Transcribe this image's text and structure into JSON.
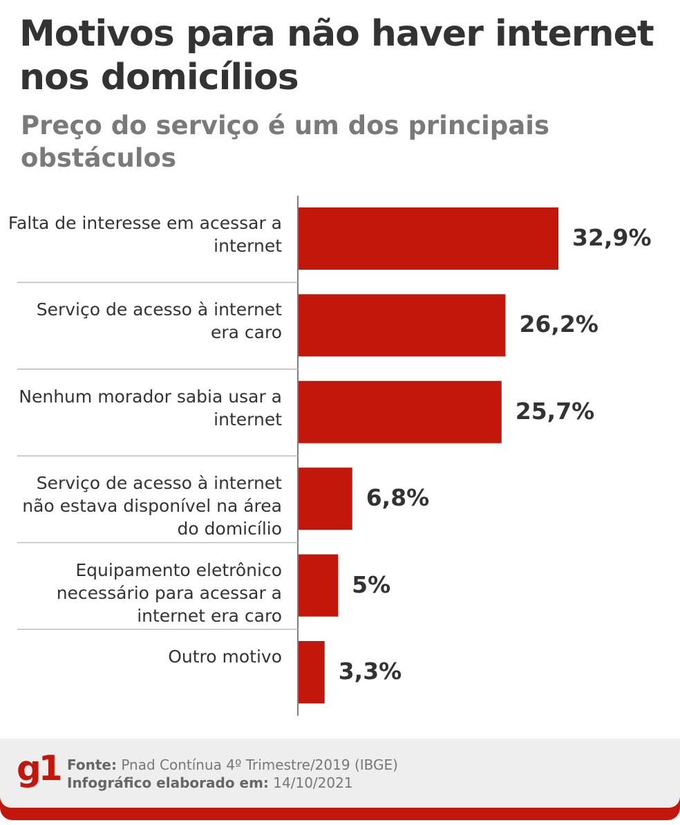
{
  "title": "Motivos para não haver internet nos domicílios",
  "subtitle": "Preço do serviço é um dos principais obstáculos",
  "chart_data": {
    "type": "bar",
    "orientation": "horizontal",
    "categories": [
      "Falta de interesse em acessar a internet",
      "Serviço de acesso à internet era caro",
      "Nenhum morador sabia usar a internet",
      "Serviço de acesso à internet não estava disponível na área do domicílio",
      "Equipamento eletrônico necessário para acessar a internet era caro",
      "Outro motivo"
    ],
    "values": [
      32.9,
      26.2,
      25.7,
      6.8,
      5,
      3.3
    ],
    "value_labels": [
      "32,9%",
      "26,2%",
      "25,7%",
      "6,8%",
      "5%",
      "3,3%"
    ],
    "unit": "%",
    "bar_color": "#c4170c",
    "grid": false
  },
  "footer": {
    "logo": "g1",
    "source_label": "Fonte:",
    "source": "Pnad Contínua 4º Trimestre/2019 (IBGE)",
    "date_label": "Infográfico elaborado em:",
    "date": "14/10/2021"
  }
}
